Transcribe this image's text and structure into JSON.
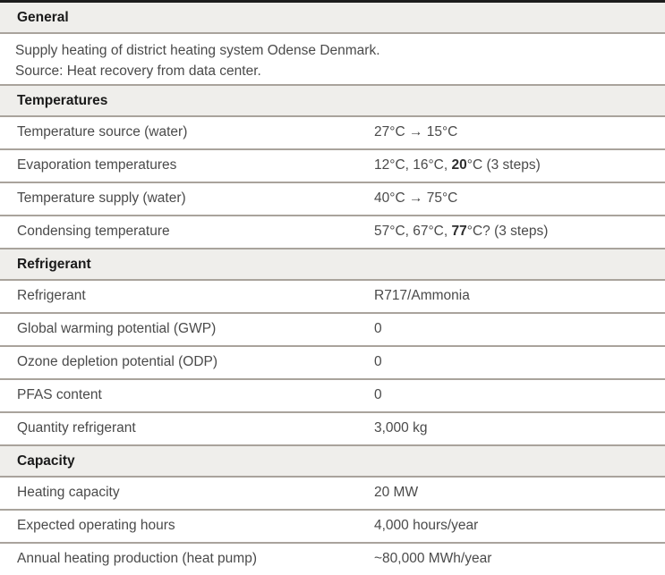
{
  "colors": {
    "top_border": "#1c1c1c",
    "section_header_bg": "#efeeeb",
    "divider": "#a9a39c",
    "body_text": "#4a4a4a",
    "heading_text": "#1a1a1a"
  },
  "table": {
    "sections": [
      {
        "title": "General",
        "lines": [
          "Supply heating of district heating system Odense Denmark.",
          "Source: Heat recovery from data center."
        ]
      },
      {
        "title": "Temperatures",
        "rows": [
          {
            "label": "Temperature source (water)",
            "value": "27°C → 15°C"
          },
          {
            "label": "Evaporation temperatures",
            "value_pre": "12°C, 16°C, ",
            "value_bold": "20",
            "value_post": "°C (3 steps)"
          },
          {
            "label": "Temperature supply (water)",
            "value": "40°C → 75°C"
          },
          {
            "label": "Condensing temperature",
            "value_pre": "57°C, 67°C, ",
            "value_bold": "77",
            "value_post": "°C? (3 steps)"
          }
        ]
      },
      {
        "title": "Refrigerant",
        "rows": [
          {
            "label": "Refrigerant",
            "value": "R717/Ammonia"
          },
          {
            "label": "Global warming potential (GWP)",
            "value": "0"
          },
          {
            "label": "Ozone depletion potential (ODP)",
            "value": "0"
          },
          {
            "label": "PFAS content",
            "value": "0"
          },
          {
            "label": "Quantity refrigerant",
            "value": "3,000 kg"
          }
        ]
      },
      {
        "title": "Capacity",
        "rows": [
          {
            "label": "Heating capacity",
            "value": "20 MW"
          },
          {
            "label": "Expected operating hours",
            "value": "4,000 hours/year"
          },
          {
            "label": "Annual heating production (heat pump)",
            "value": "~80,000 MWh/year"
          }
        ]
      }
    ]
  }
}
